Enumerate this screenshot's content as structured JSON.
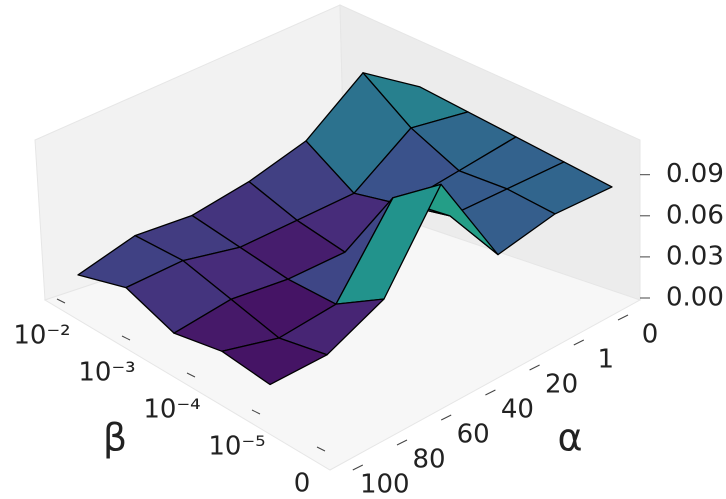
{
  "chart_data": {
    "type": "surface",
    "colormap": "viridis",
    "y_label": "β",
    "x_label": "α",
    "y_categories": [
      "10⁻²",
      "10⁻³",
      "10⁻⁴",
      "10⁻⁵",
      "0"
    ],
    "x_categories": [
      "0",
      "1",
      "20",
      "40",
      "60",
      "80",
      "100"
    ],
    "z": [
      [
        0.03,
        0.06,
        0.03,
        0.02,
        0.015,
        0.02,
        0.011
      ],
      [
        0.03,
        0.038,
        0.01,
        0.01,
        0.01,
        0.02,
        0.02
      ],
      [
        0.03,
        0.025,
        0.02,
        0.005,
        0.005,
        0.01,
        0.005
      ],
      [
        0.03,
        0.03,
        0.03,
        0.063,
        0.005,
        0.0,
        0.01
      ],
      [
        0.03,
        0.03,
        0.02,
        0.091,
        0.027,
        0.006,
        0.004
      ]
    ],
    "zlim": [
      0,
      0.1
    ],
    "zticks": [
      {
        "value": 0,
        "label": "0.00"
      },
      {
        "value": 0.03,
        "label": "0.03"
      },
      {
        "value": 0.06,
        "label": "0.06"
      },
      {
        "value": 0.09,
        "label": "0.09"
      }
    ]
  }
}
